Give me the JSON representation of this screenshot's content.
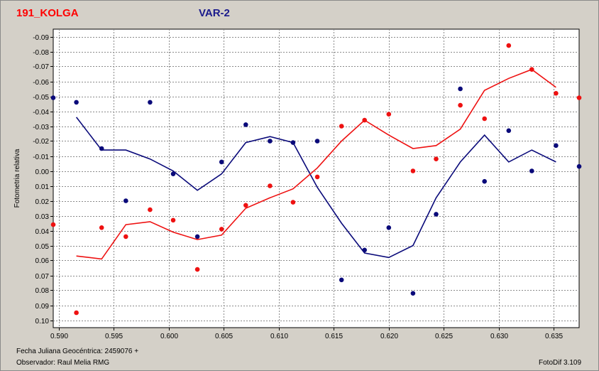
{
  "header": {
    "star_name": "191_KOLGA",
    "variable_label": "VAR-2"
  },
  "footer": {
    "julian_date": "Fecha Juliana Geocéntrica: 2459076 +",
    "observer": "Observador: Raul Melia RMG",
    "software": "FotoDif 3.109"
  },
  "colors": {
    "red": "#ee1111",
    "blue": "#0a0a7a",
    "grid": "#8a8a8a",
    "plot_bg": "#ffffff"
  },
  "chart_data": {
    "type": "scatter",
    "ylabel": "Fotometria relativa",
    "xlim": [
      0.5895,
      0.6373
    ],
    "ylim": [
      -0.095,
      0.105
    ],
    "y_inverted": true,
    "grid": true,
    "x_ticks": [
      "0.590",
      "0.595",
      "0.600",
      "0.605",
      "0.610",
      "0.615",
      "0.620",
      "0.625",
      "0.630",
      "0.635"
    ],
    "x_tick_values": [
      0.59,
      0.595,
      0.6,
      0.605,
      0.61,
      0.615,
      0.62,
      0.625,
      0.63,
      0.635
    ],
    "y_ticks": [
      "-0.09",
      "-0.08",
      "-0.07",
      "-0.06",
      "-0.05",
      "-0.04",
      "-0.03",
      "-0.02",
      "-0.01",
      "0.00",
      "0.01",
      "0.02",
      "0.03",
      "0.04",
      "0.05",
      "0.06",
      "0.07",
      "0.08",
      "0.09",
      "0.10"
    ],
    "y_tick_values": [
      -0.09,
      -0.08,
      -0.07,
      -0.06,
      -0.05,
      -0.04,
      -0.03,
      -0.02,
      -0.01,
      0.0,
      0.01,
      0.02,
      0.03,
      0.04,
      0.05,
      0.06,
      0.07,
      0.08,
      0.09,
      0.1
    ],
    "series": [
      {
        "color": "#0a0a7a",
        "points": [
          [
            0.5895,
            -0.049
          ],
          [
            0.5916,
            -0.046
          ],
          [
            0.5939,
            -0.015
          ],
          [
            0.5961,
            0.02
          ],
          [
            0.5983,
            -0.046
          ],
          [
            0.6004,
            0.002
          ],
          [
            0.6026,
            0.044
          ],
          [
            0.6048,
            -0.006
          ],
          [
            0.607,
            -0.031
          ],
          [
            0.6092,
            -0.02
          ],
          [
            0.6113,
            -0.019
          ],
          [
            0.6135,
            -0.02
          ],
          [
            0.6157,
            0.073
          ],
          [
            0.6178,
            0.053
          ],
          [
            0.62,
            0.038
          ],
          [
            0.6222,
            0.082
          ],
          [
            0.6243,
            0.029
          ],
          [
            0.6265,
            -0.055
          ],
          [
            0.6287,
            0.007
          ],
          [
            0.6309,
            -0.027
          ],
          [
            0.633,
            0.0
          ],
          [
            0.6352,
            -0.017
          ],
          [
            0.6373,
            -0.003
          ]
        ],
        "line": [
          [
            0.5916,
            -0.036
          ],
          [
            0.5939,
            -0.014
          ],
          [
            0.5961,
            -0.014
          ],
          [
            0.5983,
            -0.008
          ],
          [
            0.6004,
            0.0
          ],
          [
            0.6026,
            0.013
          ],
          [
            0.6048,
            0.002
          ],
          [
            0.607,
            -0.019
          ],
          [
            0.6092,
            -0.023
          ],
          [
            0.6113,
            -0.019
          ],
          [
            0.6135,
            0.011
          ],
          [
            0.6157,
            0.035
          ],
          [
            0.6178,
            0.055
          ],
          [
            0.62,
            0.058
          ],
          [
            0.6222,
            0.05
          ],
          [
            0.6243,
            0.018
          ],
          [
            0.6265,
            -0.006
          ],
          [
            0.6287,
            -0.024
          ],
          [
            0.6309,
            -0.006
          ],
          [
            0.633,
            -0.014
          ],
          [
            0.6352,
            -0.006
          ]
        ]
      },
      {
        "color": "#ee1111",
        "points": [
          [
            0.5895,
            0.036
          ],
          [
            0.5916,
            0.095
          ],
          [
            0.5939,
            0.038
          ],
          [
            0.5961,
            0.044
          ],
          [
            0.5983,
            0.026
          ],
          [
            0.6004,
            0.033
          ],
          [
            0.6026,
            0.066
          ],
          [
            0.6048,
            0.039
          ],
          [
            0.607,
            0.023
          ],
          [
            0.6092,
            0.01
          ],
          [
            0.6113,
            0.021
          ],
          [
            0.6135,
            0.004
          ],
          [
            0.6157,
            -0.03
          ],
          [
            0.6178,
            -0.034
          ],
          [
            0.62,
            -0.038
          ],
          [
            0.6222,
            0.0
          ],
          [
            0.6243,
            -0.008
          ],
          [
            0.6265,
            -0.044
          ],
          [
            0.6287,
            -0.035
          ],
          [
            0.6309,
            -0.084
          ],
          [
            0.633,
            -0.068
          ],
          [
            0.6352,
            -0.052
          ],
          [
            0.6373,
            -0.049
          ]
        ],
        "line": [
          [
            0.5916,
            0.057
          ],
          [
            0.5939,
            0.059
          ],
          [
            0.5961,
            0.036
          ],
          [
            0.5983,
            0.034
          ],
          [
            0.6004,
            0.041
          ],
          [
            0.6026,
            0.046
          ],
          [
            0.6048,
            0.043
          ],
          [
            0.607,
            0.025
          ],
          [
            0.6092,
            0.018
          ],
          [
            0.6113,
            0.012
          ],
          [
            0.6135,
            -0.002
          ],
          [
            0.6157,
            -0.02
          ],
          [
            0.6178,
            -0.034
          ],
          [
            0.62,
            -0.024
          ],
          [
            0.6222,
            -0.015
          ],
          [
            0.6243,
            -0.017
          ],
          [
            0.6265,
            -0.028
          ],
          [
            0.6287,
            -0.054
          ],
          [
            0.6309,
            -0.062
          ],
          [
            0.633,
            -0.068
          ],
          [
            0.6352,
            -0.056
          ]
        ]
      }
    ]
  }
}
